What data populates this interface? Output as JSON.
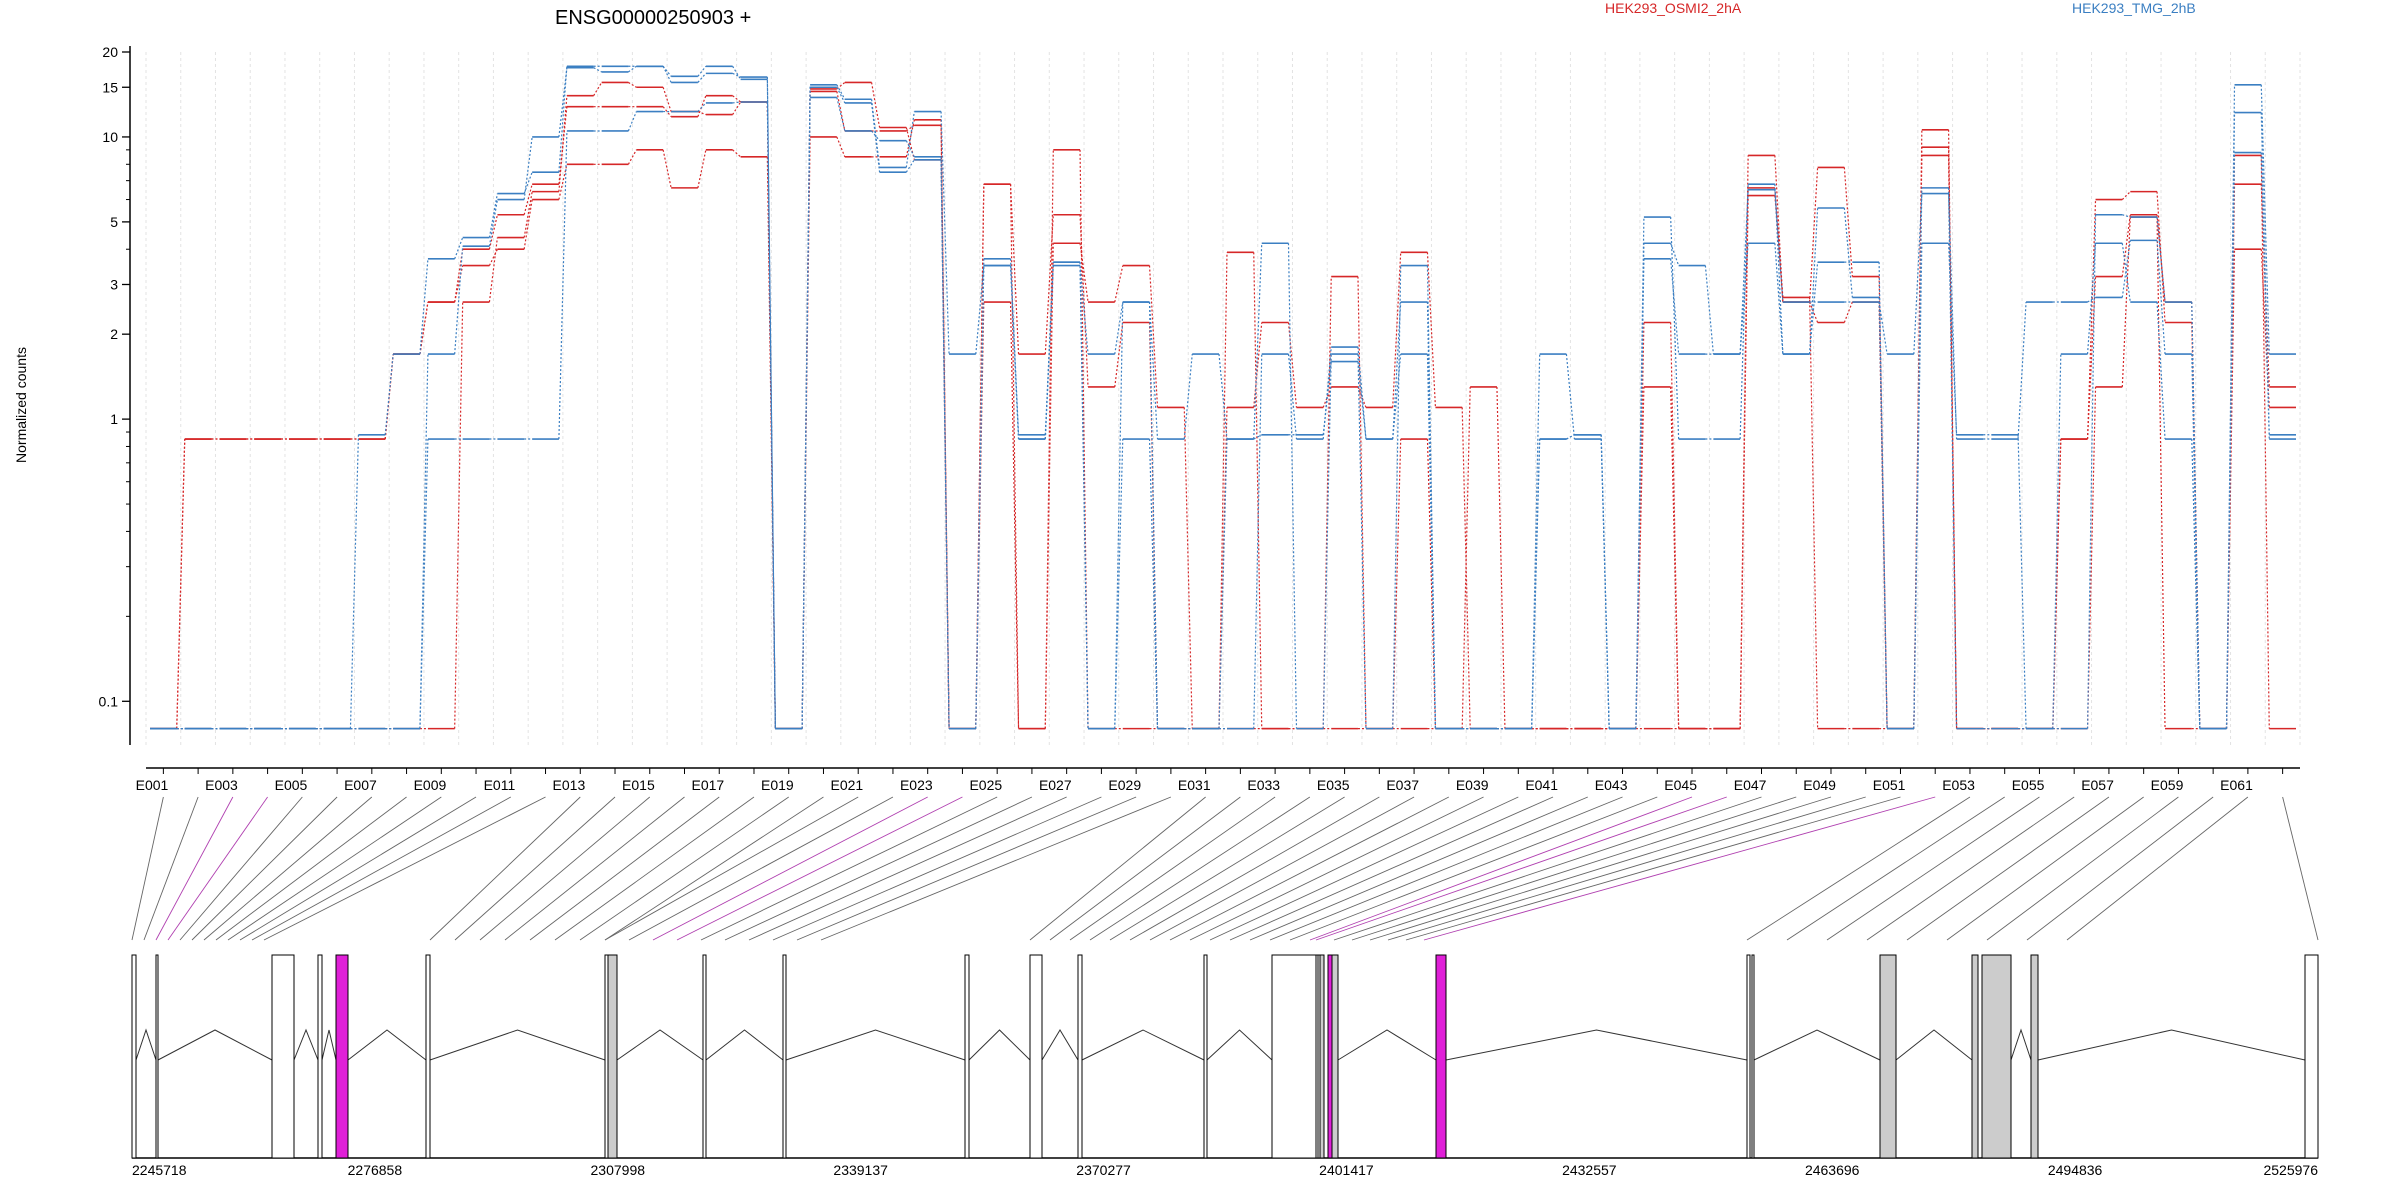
{
  "chart_data": {
    "type": "line",
    "title": "ENSG00000250903 +",
    "ylabel": "Normalized counts",
    "xlabel": "",
    "yscale": "log",
    "ylim": [
      0.07,
      20
    ],
    "yticks": [
      0.1,
      1,
      2,
      3,
      5,
      10,
      15,
      20
    ],
    "ytick_labels": [
      "0.1",
      "1",
      "2",
      "3",
      "5",
      "10",
      "15",
      "20"
    ],
    "grid": "vertical",
    "legend": [
      {
        "name": "HEK293_OSMI2_2hA",
        "color": "#d62728"
      },
      {
        "name": "HEK293_TMG_2hB",
        "color": "#3b7fc2"
      }
    ],
    "categories": [
      "E001",
      "E002",
      "E003",
      "E004",
      "E005",
      "E006",
      "E007",
      "E008",
      "E009",
      "E010",
      "E011",
      "E012",
      "E013",
      "E014",
      "E015",
      "E016",
      "E017",
      "E018",
      "E019",
      "E020",
      "E021",
      "E022",
      "E023",
      "E024",
      "E025",
      "E026",
      "E027",
      "E028",
      "E029",
      "E030",
      "E031",
      "E032",
      "E033",
      "E034",
      "E035",
      "E036",
      "E037",
      "E038",
      "E039",
      "E040",
      "E041",
      "E042",
      "E043",
      "E044",
      "E045",
      "E046",
      "E047",
      "E048",
      "E049",
      "E050",
      "E051",
      "E052",
      "E053",
      "E054",
      "E055",
      "E056",
      "E057",
      "E058",
      "E059",
      "E060",
      "E061",
      "E062"
    ],
    "tick_labels": [
      "E001",
      "E003",
      "E005",
      "E007",
      "E009",
      "E011",
      "E013",
      "E015",
      "E017",
      "E019",
      "E021",
      "E023",
      "E025",
      "E027",
      "E029",
      "E031",
      "E033",
      "E035",
      "E037",
      "E039",
      "E041",
      "E043",
      "E045",
      "E047",
      "E049",
      "E051",
      "E053",
      "E055",
      "E057",
      "E059",
      "E061"
    ],
    "series": [
      {
        "name": "HEK293_OSMI2_2hA",
        "color": "#d62728",
        "values": [
          0.08,
          0.85,
          0.85,
          0.85,
          0.85,
          0.85,
          0.85,
          1.7,
          2.6,
          4.0,
          5.3,
          6.8,
          12.8,
          12.8,
          12.8,
          11.8,
          14.0,
          13.3,
          0.08,
          14.5,
          10.5,
          10.5,
          11.0,
          0.08,
          2.6,
          0.08,
          4.2,
          2.6,
          3.5,
          1.1,
          0.08,
          1.1,
          2.2,
          1.1,
          1.3,
          1.1,
          3.9,
          1.1,
          0.08,
          0.08,
          0.08,
          0.08,
          0.08,
          1.3,
          0.08,
          0.08,
          6.6,
          2.6,
          2.2,
          2.6,
          0.08,
          8.6,
          0.08,
          0.08,
          0.08,
          0.85,
          3.2,
          5.3,
          2.6,
          0.08,
          4.0,
          1.1
        ]
      },
      {
        "name": "HEK293_OSMI2_2hA",
        "color": "#d62728",
        "values": [
          0.08,
          0.85,
          0.85,
          0.85,
          0.85,
          0.85,
          0.85,
          1.7,
          2.6,
          3.5,
          4.0,
          6.0,
          8.0,
          8.0,
          9.0,
          6.6,
          9.0,
          8.5,
          0.08,
          10.0,
          8.5,
          8.5,
          11.5,
          0.08,
          6.8,
          1.7,
          5.3,
          1.3,
          2.2,
          0.08,
          0.08,
          3.9,
          0.08,
          0.08,
          3.2,
          0.08,
          0.85,
          0.08,
          1.3,
          0.08,
          0.08,
          0.08,
          0.08,
          2.2,
          0.08,
          0.08,
          8.6,
          2.6,
          7.8,
          3.2,
          0.08,
          10.6,
          0.08,
          0.08,
          0.08,
          0.85,
          6.0,
          6.4,
          2.2,
          0.08,
          6.8,
          1.3
        ]
      },
      {
        "name": "HEK293_OSMI2_2hA",
        "color": "#d62728",
        "values": [
          0.08,
          0.08,
          0.08,
          0.08,
          0.08,
          0.08,
          0.08,
          0.08,
          0.08,
          2.6,
          4.4,
          6.4,
          14.0,
          15.6,
          15.0,
          12.3,
          12.0,
          13.3,
          0.08,
          14.8,
          15.6,
          10.8,
          8.3,
          0.08,
          6.8,
          0.08,
          9.0,
          0.08,
          0.08,
          0.08,
          0.08,
          0.08,
          0.08,
          0.08,
          0.08,
          0.08,
          0.08,
          0.08,
          0.08,
          0.08,
          0.08,
          0.08,
          0.08,
          0.08,
          0.08,
          0.08,
          6.2,
          2.7,
          0.08,
          0.08,
          0.08,
          9.2,
          0.08,
          0.08,
          0.08,
          0.08,
          1.3,
          5.2,
          0.08,
          0.08,
          8.6,
          0.08
        ]
      },
      {
        "name": "HEK293_TMG_2hB",
        "color": "#3b7fc2",
        "values": [
          0.08,
          0.08,
          0.08,
          0.08,
          0.08,
          0.08,
          0.88,
          1.7,
          3.7,
          4.4,
          6.3,
          7.5,
          17.8,
          17.8,
          17.8,
          16.4,
          17.8,
          16.0,
          0.08,
          15.0,
          13.2,
          7.5,
          8.3,
          0.08,
          3.7,
          0.88,
          3.6,
          0.08,
          2.6,
          0.08,
          0.08,
          0.85,
          4.2,
          0.08,
          1.7,
          0.08,
          3.5,
          0.08,
          0.08,
          0.08,
          0.85,
          0.88,
          0.08,
          5.2,
          0.85,
          0.85,
          6.8,
          1.7,
          3.6,
          3.6,
          0.08,
          6.6,
          0.08,
          0.08,
          0.08,
          0.08,
          5.3,
          5.2,
          2.6,
          0.08,
          8.8,
          0.85
        ]
      },
      {
        "name": "HEK293_TMG_2hB",
        "color": "#3b7fc2",
        "values": [
          0.08,
          0.08,
          0.08,
          0.08,
          0.08,
          0.08,
          0.08,
          0.08,
          0.85,
          0.85,
          0.85,
          0.85,
          10.5,
          10.5,
          12.3,
          12.3,
          13.2,
          13.3,
          0.08,
          13.8,
          10.5,
          9.7,
          8.5,
          0.08,
          3.5,
          0.85,
          3.5,
          1.7,
          2.6,
          0.85,
          1.7,
          0.85,
          0.88,
          0.88,
          1.6,
          0.85,
          1.7,
          0.08,
          0.08,
          0.08,
          0.85,
          0.88,
          0.08,
          3.7,
          1.7,
          1.7,
          4.2,
          1.7,
          5.6,
          2.7,
          0.08,
          4.2,
          0.88,
          0.88,
          0.08,
          1.7,
          4.2,
          2.6,
          0.85,
          0.08,
          15.3,
          1.7
        ]
      },
      {
        "name": "HEK293_TMG_2hB",
        "color": "#3b7fc2",
        "values": [
          0.08,
          0.08,
          0.08,
          0.08,
          0.08,
          0.08,
          0.08,
          0.08,
          1.7,
          4.1,
          6.0,
          10.0,
          17.6,
          17.0,
          17.8,
          15.6,
          16.8,
          16.3,
          0.08,
          15.3,
          13.6,
          7.8,
          12.3,
          1.7,
          3.5,
          0.85,
          3.6,
          0.08,
          0.85,
          0.08,
          0.08,
          0.08,
          1.7,
          0.85,
          1.8,
          0.85,
          2.6,
          0.08,
          0.08,
          0.08,
          1.7,
          0.85,
          0.08,
          4.2,
          3.5,
          1.7,
          6.5,
          2.6,
          2.6,
          2.6,
          1.7,
          6.3,
          0.85,
          0.85,
          2.6,
          2.6,
          2.7,
          4.3,
          1.7,
          0.08,
          12.2,
          0.88
        ]
      }
    ]
  },
  "gene_model": {
    "coordinates": [
      "2245718",
      "2276858",
      "2307998",
      "2339137",
      "2370277",
      "2401417",
      "2432557",
      "2463696",
      "2494836",
      "2525976"
    ],
    "highlight_color": "#e020d8",
    "shade_color": "#cccccc"
  }
}
